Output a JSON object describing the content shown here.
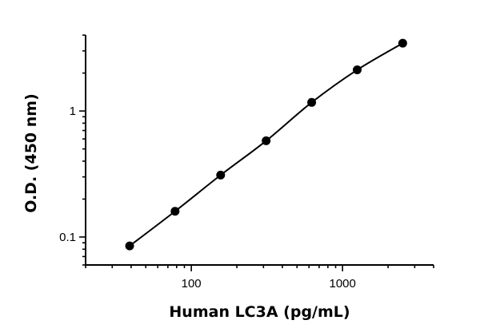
{
  "chart_data": {
    "type": "scatter",
    "title": "",
    "xlabel": "Human LC3A (pg/mL)",
    "ylabel": "O.D. (450 nm)",
    "xscale": "log",
    "yscale": "log",
    "xlim": [
      20,
      4000
    ],
    "ylim": [
      0.06,
      4
    ],
    "grid": false,
    "legend": "none",
    "x_tick_labels": [
      {
        "value": 100,
        "label": "100"
      },
      {
        "value": 1000,
        "label": "1000"
      }
    ],
    "y_tick_labels": [
      {
        "value": 0.1,
        "label": "0.1"
      },
      {
        "value": 1,
        "label": "1"
      }
    ],
    "series": [
      {
        "x": [
          39.1,
          78.1,
          156.3,
          312.5,
          625,
          1250,
          2500
        ],
        "y": [
          0.085,
          0.16,
          0.31,
          0.58,
          1.17,
          2.12,
          3.45
        ],
        "fit_line": true,
        "marker": "circle",
        "color": "#000000"
      }
    ]
  }
}
